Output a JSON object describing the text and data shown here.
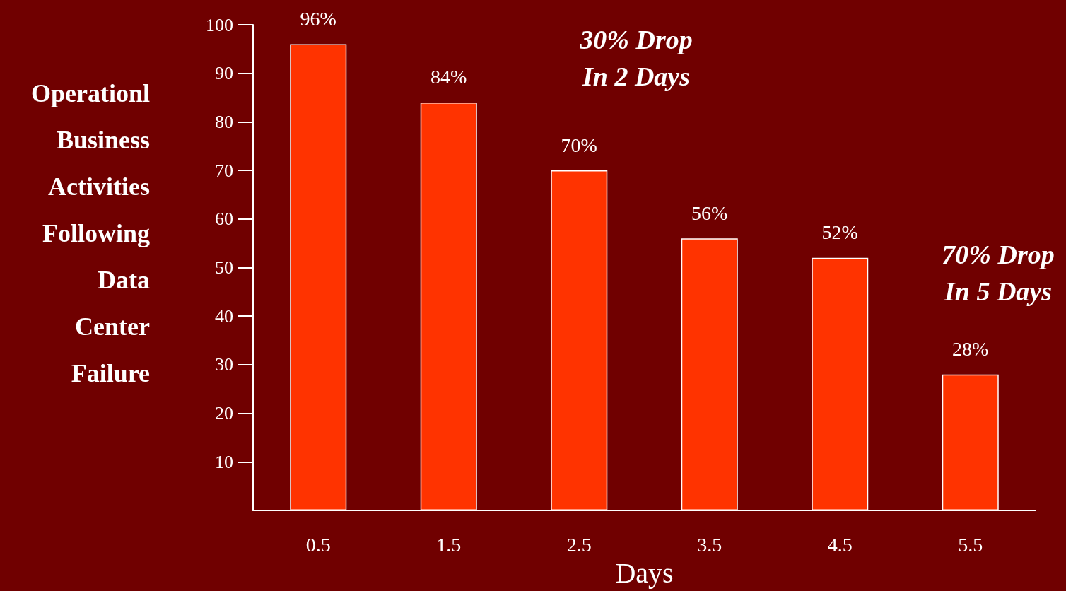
{
  "chart_data": {
    "type": "bar",
    "xlabel": "Days",
    "ylabel": "Operationl Business Activities Following Data Center Failure",
    "categories": [
      "0.5",
      "1.5",
      "2.5",
      "3.5",
      "4.5",
      "5.5"
    ],
    "values": [
      96,
      84,
      70,
      56,
      52,
      28
    ],
    "color": "#ff3300",
    "value_labels": [
      "96%",
      "84%",
      "70%",
      "56%",
      "52%",
      "28%"
    ],
    "ylim": [
      0,
      100
    ],
    "yticks": [
      10,
      20,
      30,
      40,
      50,
      60,
      70,
      80,
      90,
      100
    ],
    "grid": false,
    "annotations": [
      "30% Drop In 2 Days",
      "70% Drop In 5 Days"
    ]
  }
}
